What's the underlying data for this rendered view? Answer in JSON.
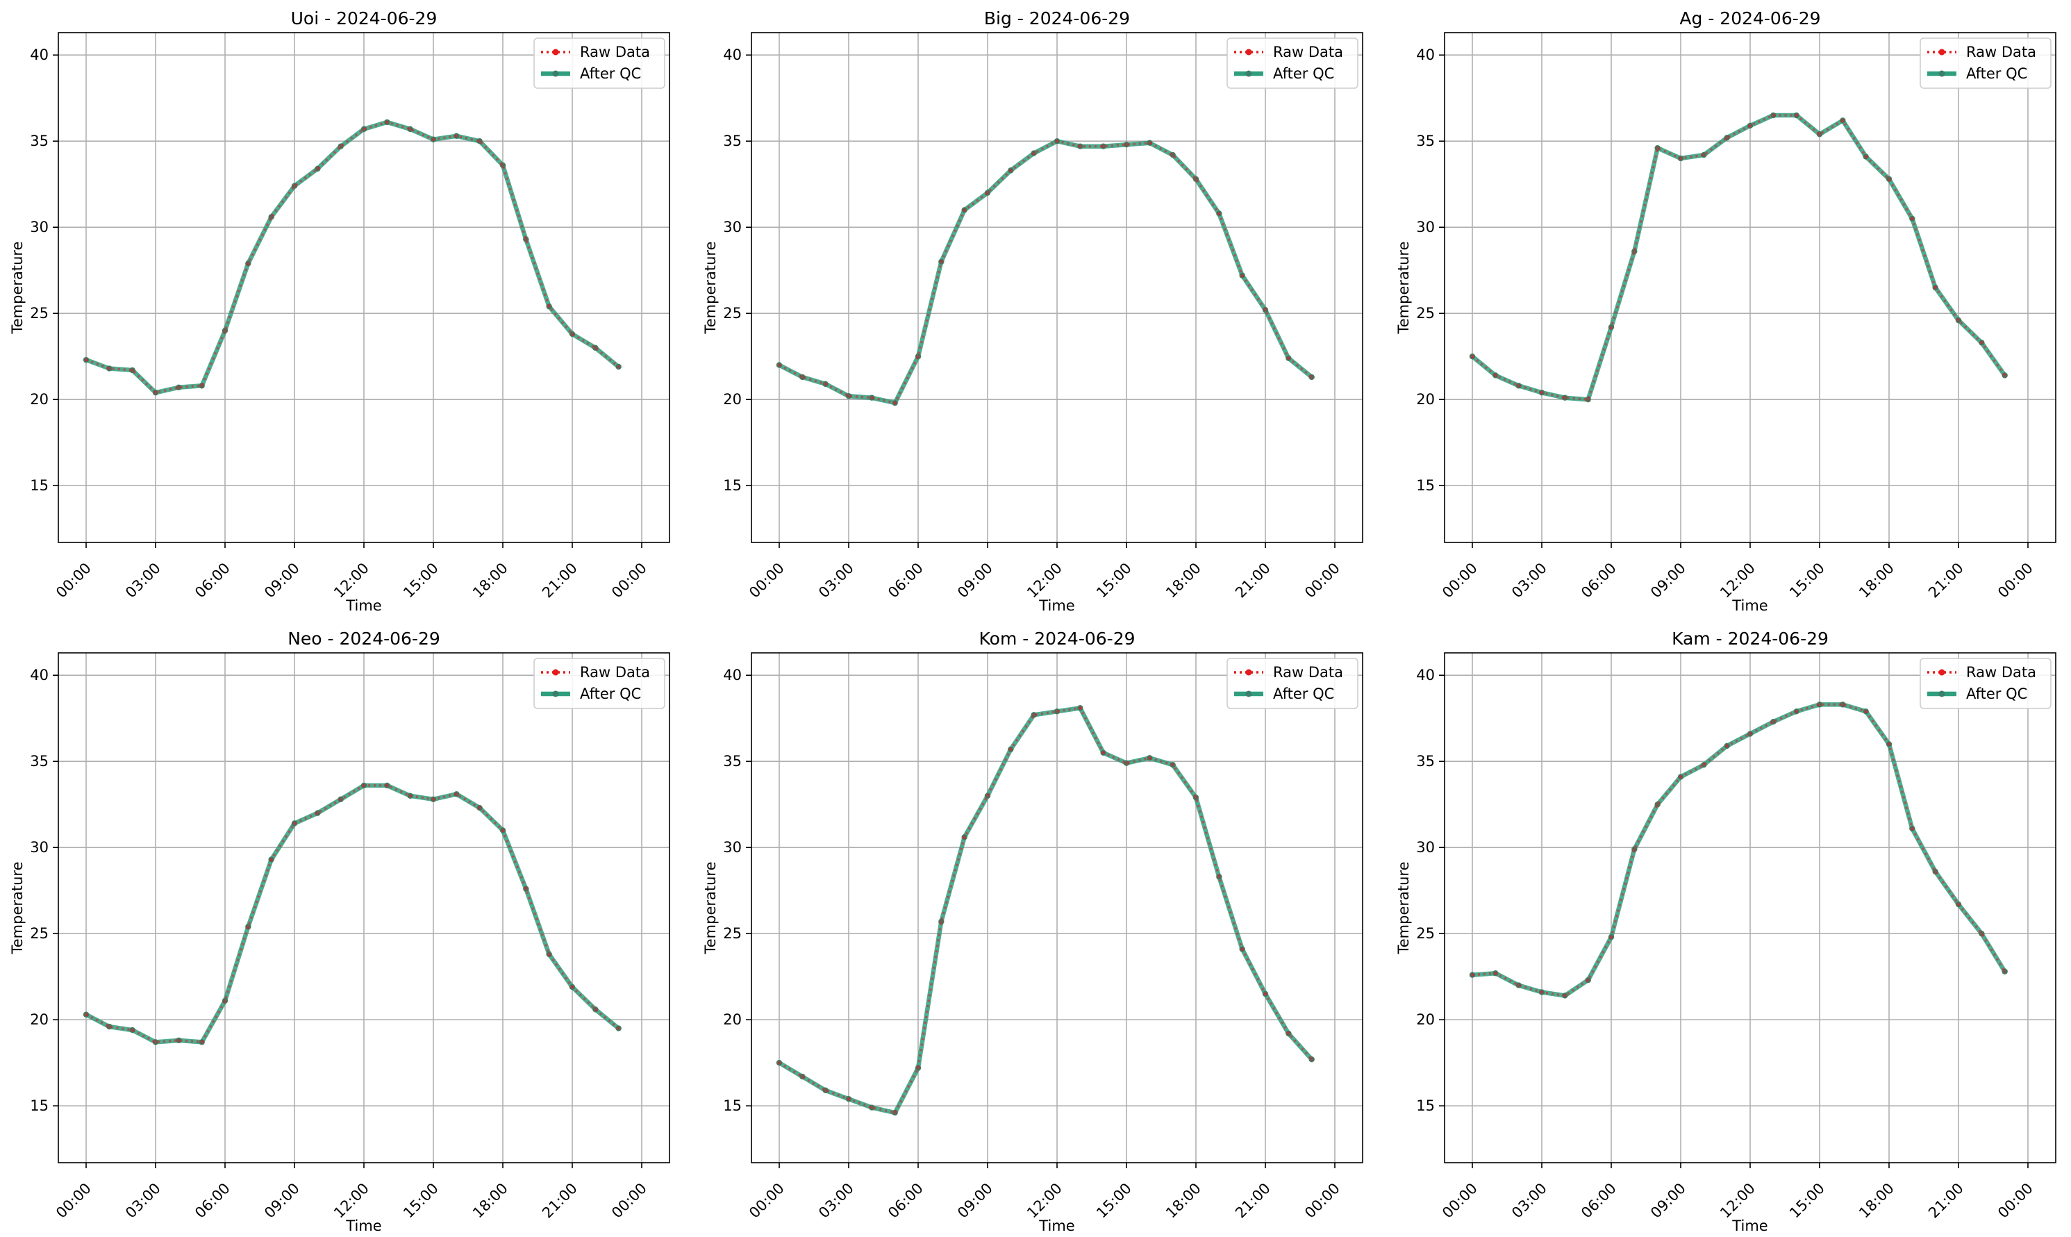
{
  "figure": {
    "legend": {
      "raw_label": "Raw Data",
      "qc_label": "After QC"
    },
    "colors": {
      "raw": "#e41a1c",
      "qc": "#2e9e7e",
      "qc_marker": "#3a7f6a",
      "grid": "#b0b0b0"
    }
  },
  "chart_data": [
    {
      "type": "line",
      "title": "Uoi - 2024-06-29",
      "xlabel": "Time",
      "ylabel": "Temperature",
      "x": [
        "00:00",
        "01:00",
        "02:00",
        "03:00",
        "04:00",
        "05:00",
        "06:00",
        "07:00",
        "08:00",
        "09:00",
        "10:00",
        "11:00",
        "12:00",
        "13:00",
        "14:00",
        "15:00",
        "16:00",
        "17:00",
        "18:00",
        "19:00",
        "20:00",
        "21:00",
        "22:00",
        "23:00"
      ],
      "xticks": [
        "00:00",
        "03:00",
        "06:00",
        "09:00",
        "12:00",
        "15:00",
        "18:00",
        "21:00",
        "00:00"
      ],
      "ylim": [
        11.7,
        41.3
      ],
      "yticks": [
        15,
        20,
        25,
        30,
        35,
        40
      ],
      "grid": true,
      "legend": "top-right",
      "series": [
        {
          "name": "Raw Data",
          "values": [
            22.3,
            21.8,
            21.7,
            20.4,
            20.7,
            20.8,
            24.0,
            27.9,
            30.6,
            32.4,
            33.4,
            34.7,
            35.7,
            36.1,
            35.7,
            35.1,
            35.3,
            35.0,
            33.6,
            29.3,
            25.4,
            23.8,
            23.0,
            21.9
          ]
        },
        {
          "name": "After QC",
          "values": [
            22.3,
            21.8,
            21.7,
            20.4,
            20.7,
            20.8,
            24.0,
            27.9,
            30.6,
            32.4,
            33.4,
            34.7,
            35.7,
            36.1,
            35.7,
            35.1,
            35.3,
            35.0,
            33.6,
            29.3,
            25.4,
            23.8,
            23.0,
            21.9
          ]
        }
      ]
    },
    {
      "type": "line",
      "title": "Big - 2024-06-29",
      "xlabel": "Time",
      "ylabel": "Temperature",
      "x": [
        "00:00",
        "01:00",
        "02:00",
        "03:00",
        "04:00",
        "05:00",
        "06:00",
        "07:00",
        "08:00",
        "09:00",
        "10:00",
        "11:00",
        "12:00",
        "13:00",
        "14:00",
        "15:00",
        "16:00",
        "17:00",
        "18:00",
        "19:00",
        "20:00",
        "21:00",
        "22:00",
        "23:00"
      ],
      "xticks": [
        "00:00",
        "03:00",
        "06:00",
        "09:00",
        "12:00",
        "15:00",
        "18:00",
        "21:00",
        "00:00"
      ],
      "ylim": [
        11.7,
        41.3
      ],
      "yticks": [
        15,
        20,
        25,
        30,
        35,
        40
      ],
      "grid": true,
      "legend": "top-right",
      "series": [
        {
          "name": "Raw Data",
          "values": [
            22.0,
            21.3,
            20.9,
            20.2,
            20.1,
            19.8,
            22.5,
            28.0,
            31.0,
            32.0,
            33.3,
            34.3,
            35.0,
            34.7,
            34.7,
            34.8,
            34.9,
            34.2,
            32.8,
            30.8,
            27.2,
            25.2,
            22.4,
            21.3
          ]
        },
        {
          "name": "After QC",
          "values": [
            22.0,
            21.3,
            20.9,
            20.2,
            20.1,
            19.8,
            22.5,
            28.0,
            31.0,
            32.0,
            33.3,
            34.3,
            35.0,
            34.7,
            34.7,
            34.8,
            34.9,
            34.2,
            32.8,
            30.8,
            27.2,
            25.2,
            22.4,
            21.3
          ]
        }
      ]
    },
    {
      "type": "line",
      "title": "Ag - 2024-06-29",
      "xlabel": "Time",
      "ylabel": "Temperature",
      "x": [
        "00:00",
        "01:00",
        "02:00",
        "03:00",
        "04:00",
        "05:00",
        "06:00",
        "07:00",
        "08:00",
        "09:00",
        "10:00",
        "11:00",
        "12:00",
        "13:00",
        "14:00",
        "15:00",
        "16:00",
        "17:00",
        "18:00",
        "19:00",
        "20:00",
        "21:00",
        "22:00",
        "23:00"
      ],
      "xticks": [
        "00:00",
        "03:00",
        "06:00",
        "09:00",
        "12:00",
        "15:00",
        "18:00",
        "21:00",
        "00:00"
      ],
      "ylim": [
        11.7,
        41.3
      ],
      "yticks": [
        15,
        20,
        25,
        30,
        35,
        40
      ],
      "grid": true,
      "legend": "top-right",
      "series": [
        {
          "name": "Raw Data",
          "values": [
            22.5,
            21.4,
            20.8,
            20.4,
            20.1,
            20.0,
            24.2,
            28.6,
            34.6,
            34.0,
            34.2,
            35.2,
            35.9,
            36.5,
            36.5,
            35.4,
            36.2,
            34.1,
            32.8,
            30.5,
            26.5,
            24.6,
            23.3,
            21.4
          ]
        },
        {
          "name": "After QC",
          "values": [
            22.5,
            21.4,
            20.8,
            20.4,
            20.1,
            20.0,
            24.2,
            28.6,
            34.6,
            34.0,
            34.2,
            35.2,
            35.9,
            36.5,
            36.5,
            35.4,
            36.2,
            34.1,
            32.8,
            30.5,
            26.5,
            24.6,
            23.3,
            21.4
          ]
        }
      ]
    },
    {
      "type": "line",
      "title": "Neo - 2024-06-29",
      "xlabel": "Time",
      "ylabel": "Temperature",
      "x": [
        "00:00",
        "01:00",
        "02:00",
        "03:00",
        "04:00",
        "05:00",
        "06:00",
        "07:00",
        "08:00",
        "09:00",
        "10:00",
        "11:00",
        "12:00",
        "13:00",
        "14:00",
        "15:00",
        "16:00",
        "17:00",
        "18:00",
        "19:00",
        "20:00",
        "21:00",
        "22:00",
        "23:00"
      ],
      "xticks": [
        "00:00",
        "03:00",
        "06:00",
        "09:00",
        "12:00",
        "15:00",
        "18:00",
        "21:00",
        "00:00"
      ],
      "ylim": [
        11.7,
        41.3
      ],
      "yticks": [
        15,
        20,
        25,
        30,
        35,
        40
      ],
      "grid": true,
      "legend": "top-right",
      "series": [
        {
          "name": "Raw Data",
          "values": [
            20.3,
            19.6,
            19.4,
            18.7,
            18.8,
            18.7,
            21.1,
            25.4,
            29.3,
            31.4,
            32.0,
            32.8,
            33.6,
            33.6,
            33.0,
            32.8,
            33.1,
            32.3,
            31.0,
            27.6,
            23.8,
            21.9,
            20.6,
            19.5
          ]
        },
        {
          "name": "After QC",
          "values": [
            20.3,
            19.6,
            19.4,
            18.7,
            18.8,
            18.7,
            21.1,
            25.4,
            29.3,
            31.4,
            32.0,
            32.8,
            33.6,
            33.6,
            33.0,
            32.8,
            33.1,
            32.3,
            31.0,
            27.6,
            23.8,
            21.9,
            20.6,
            19.5
          ]
        }
      ]
    },
    {
      "type": "line",
      "title": "Kom - 2024-06-29",
      "xlabel": "Time",
      "ylabel": "Temperature",
      "x": [
        "00:00",
        "01:00",
        "02:00",
        "03:00",
        "04:00",
        "05:00",
        "06:00",
        "07:00",
        "08:00",
        "09:00",
        "10:00",
        "11:00",
        "12:00",
        "13:00",
        "14:00",
        "15:00",
        "16:00",
        "17:00",
        "18:00",
        "19:00",
        "20:00",
        "21:00",
        "22:00",
        "23:00"
      ],
      "xticks": [
        "00:00",
        "03:00",
        "06:00",
        "09:00",
        "12:00",
        "15:00",
        "18:00",
        "21:00",
        "00:00"
      ],
      "ylim": [
        11.7,
        41.3
      ],
      "yticks": [
        15,
        20,
        25,
        30,
        35,
        40
      ],
      "grid": true,
      "legend": "top-right",
      "series": [
        {
          "name": "Raw Data",
          "values": [
            17.5,
            16.7,
            15.9,
            15.4,
            14.9,
            14.6,
            17.2,
            25.7,
            30.6,
            33.0,
            35.7,
            37.7,
            37.9,
            38.1,
            35.5,
            34.9,
            35.2,
            34.8,
            32.9,
            28.3,
            24.1,
            21.5,
            19.2,
            17.7
          ]
        },
        {
          "name": "After QC",
          "values": [
            17.5,
            16.7,
            15.9,
            15.4,
            14.9,
            14.6,
            17.2,
            25.7,
            30.6,
            33.0,
            35.7,
            37.7,
            37.9,
            38.1,
            35.5,
            34.9,
            35.2,
            34.8,
            32.9,
            28.3,
            24.1,
            21.5,
            19.2,
            17.7
          ]
        }
      ]
    },
    {
      "type": "line",
      "title": "Kam - 2024-06-29",
      "xlabel": "Time",
      "ylabel": "Temperature",
      "x": [
        "00:00",
        "01:00",
        "02:00",
        "03:00",
        "04:00",
        "05:00",
        "06:00",
        "07:00",
        "08:00",
        "09:00",
        "10:00",
        "11:00",
        "12:00",
        "13:00",
        "14:00",
        "15:00",
        "16:00",
        "17:00",
        "18:00",
        "19:00",
        "20:00",
        "21:00",
        "22:00",
        "23:00"
      ],
      "xticks": [
        "00:00",
        "03:00",
        "06:00",
        "09:00",
        "12:00",
        "15:00",
        "18:00",
        "21:00",
        "00:00"
      ],
      "ylim": [
        11.7,
        41.3
      ],
      "yticks": [
        15,
        20,
        25,
        30,
        35,
        40
      ],
      "grid": true,
      "legend": "top-right",
      "series": [
        {
          "name": "Raw Data",
          "values": [
            22.6,
            22.7,
            22.0,
            21.6,
            21.4,
            22.3,
            24.8,
            29.9,
            32.5,
            34.1,
            34.8,
            35.9,
            36.6,
            37.3,
            37.9,
            38.3,
            38.3,
            37.9,
            36.0,
            31.1,
            28.6,
            26.7,
            25.0,
            22.8
          ]
        },
        {
          "name": "After QC",
          "values": [
            22.6,
            22.7,
            22.0,
            21.6,
            21.4,
            22.3,
            24.8,
            29.9,
            32.5,
            34.1,
            34.8,
            35.9,
            36.6,
            37.3,
            37.9,
            38.3,
            38.3,
            37.9,
            36.0,
            31.1,
            28.6,
            26.7,
            25.0,
            22.8
          ]
        }
      ]
    }
  ]
}
